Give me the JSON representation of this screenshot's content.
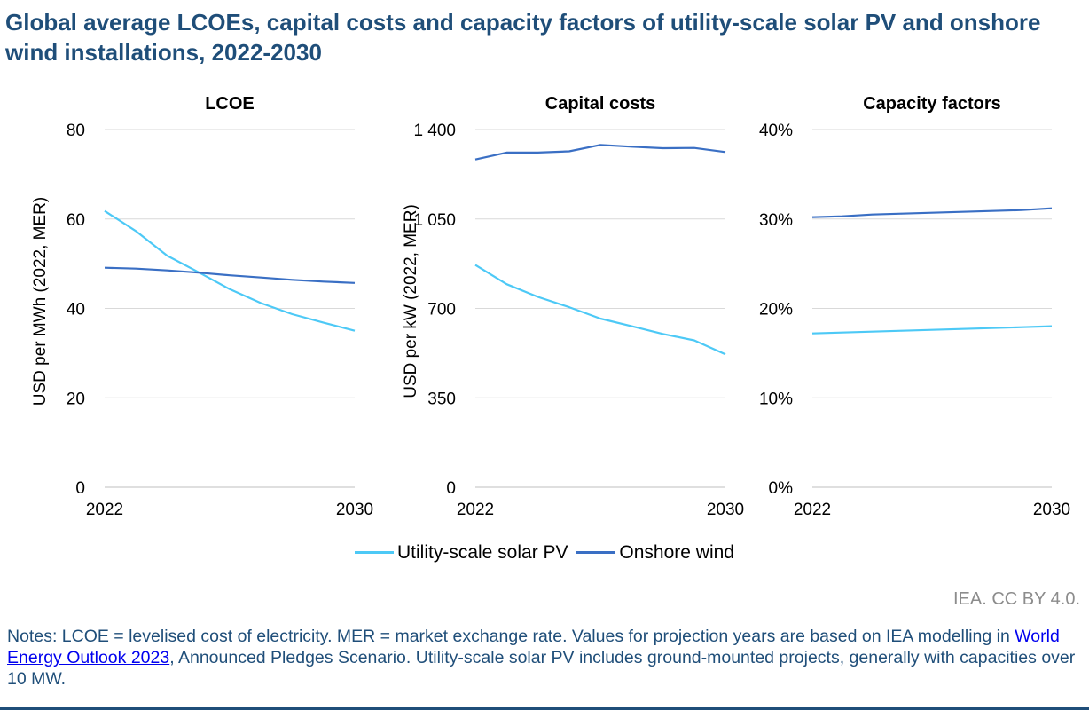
{
  "title": "Global average LCOEs, capital costs and capacity factors of utility-scale solar PV and onshore wind installations, 2022-2030",
  "credit": "IEA. CC BY 4.0.",
  "notes": {
    "before": "Notes: LCOE = levelised cost of electricity. MER = market exchange rate. Values for projection years are based on IEA modelling in ",
    "link": "World Energy Outlook 2023",
    "after": ", Announced Pledges Scenario. Utility-scale solar PV includes ground-mounted projects, generally with capacities over 10 MW."
  },
  "legend": [
    {
      "name": "Utility-scale solar PV",
      "color": "#4dc9f6"
    },
    {
      "name": "Onshore wind",
      "color": "#3a6fc4"
    }
  ],
  "chart_data": [
    {
      "type": "line",
      "title": "LCOE",
      "ylabel": "USD per MWh (2022, MER)",
      "ylim": [
        0,
        80
      ],
      "yticks": [
        0,
        20,
        40,
        60,
        80
      ],
      "ytick_labels": [
        "0",
        "20",
        "40",
        "60",
        "80"
      ],
      "x": [
        2022,
        2023,
        2024,
        2025,
        2026,
        2027,
        2028,
        2029,
        2030
      ],
      "xtick_labels": [
        "2022",
        "2030"
      ],
      "series": [
        {
          "name": "Utility-scale solar PV",
          "values": [
            61.8,
            57.3,
            51.8,
            48.1,
            44.3,
            41.2,
            38.7,
            36.8,
            35.0
          ]
        },
        {
          "name": "Onshore wind",
          "values": [
            49.1,
            48.9,
            48.5,
            48.0,
            47.4,
            46.9,
            46.4,
            46.0,
            45.7
          ]
        }
      ]
    },
    {
      "type": "line",
      "title": "Capital costs",
      "ylabel": "USD per kW (2022, MER)",
      "ylim": [
        0,
        1400
      ],
      "yticks": [
        0,
        350,
        700,
        1050,
        1400
      ],
      "ytick_labels": [
        "0",
        "350",
        "700",
        "1 050",
        "1 400"
      ],
      "x": [
        2022,
        2023,
        2024,
        2025,
        2026,
        2027,
        2028,
        2029,
        2030
      ],
      "xtick_labels": [
        "2022",
        "2030"
      ],
      "series": [
        {
          "name": "Utility-scale solar PV",
          "values": [
            870,
            795,
            745,
            705,
            660,
            630,
            600,
            575,
            520
          ]
        },
        {
          "name": "Onshore wind",
          "values": [
            1283,
            1310,
            1310,
            1315,
            1340,
            1333,
            1327,
            1328,
            1312
          ]
        }
      ]
    },
    {
      "type": "line",
      "title": "Capacity factors",
      "ylabel": "",
      "ylim": [
        0,
        40
      ],
      "yticks": [
        0,
        10,
        20,
        30,
        40
      ],
      "ytick_labels": [
        "0%",
        "10%",
        "20%",
        "30%",
        "40%"
      ],
      "x": [
        2022,
        2023,
        2024,
        2025,
        2026,
        2027,
        2028,
        2029,
        2030
      ],
      "xtick_labels": [
        "2022",
        "2030"
      ],
      "series": [
        {
          "name": "Utility-scale solar PV",
          "values": [
            17.2,
            17.3,
            17.4,
            17.5,
            17.6,
            17.7,
            17.8,
            17.9,
            18.0
          ]
        },
        {
          "name": "Onshore wind",
          "values": [
            30.2,
            30.3,
            30.5,
            30.6,
            30.7,
            30.8,
            30.9,
            31.0,
            31.2
          ]
        }
      ]
    }
  ]
}
